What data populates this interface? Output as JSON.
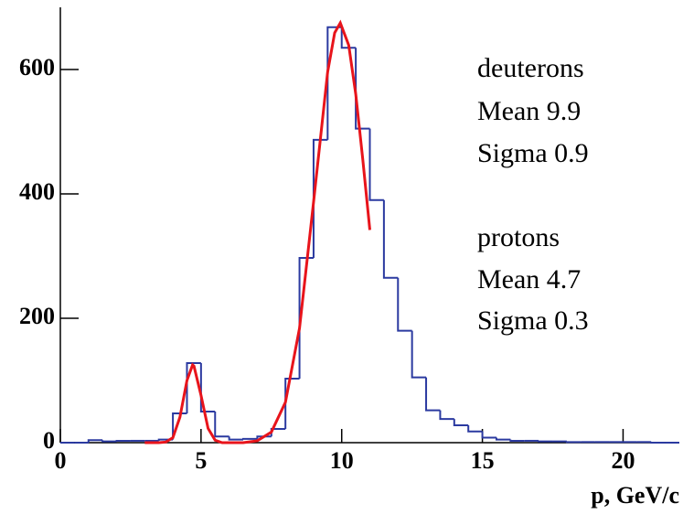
{
  "chart_data": {
    "type": "histogram",
    "x_label": "p, GeV/c",
    "bins": [
      0,
      0.5,
      1,
      1.5,
      2,
      2.5,
      3,
      3.5,
      4,
      4.5,
      5,
      5.5,
      6,
      6.5,
      7,
      7.5,
      8,
      8.5,
      9,
      9.5,
      10,
      10.5,
      11,
      11.5,
      12,
      12.5,
      13,
      13.5,
      14,
      14.5,
      15,
      15.5,
      16,
      16.5,
      17,
      17.5,
      18,
      18.5,
      19,
      19.5,
      20,
      20.5,
      21,
      21.5,
      22
    ],
    "counts": [
      0,
      0,
      4,
      2,
      3,
      3,
      3,
      5,
      47,
      128,
      50,
      10,
      5,
      6,
      10,
      22,
      103,
      297,
      487,
      668,
      635,
      505,
      390,
      265,
      180,
      105,
      52,
      38,
      28,
      18,
      8,
      5,
      3,
      3,
      2,
      2,
      1,
      1,
      1,
      1,
      1,
      1,
      0,
      0
    ],
    "color": "#2b3aa0",
    "fit": {
      "color": "#e8141b",
      "x": [
        3,
        3.5,
        3.75,
        4,
        4.25,
        4.5,
        4.7,
        4.75,
        5,
        5.25,
        5.5,
        5.75,
        6,
        6.5,
        7,
        7.5,
        8,
        8.5,
        9,
        9.5,
        9.75,
        9.95,
        10.25,
        10.5,
        10.75,
        11
      ],
      "y": [
        0,
        0,
        1,
        8,
        41,
        100,
        125,
        123,
        76,
        23,
        4,
        0,
        0,
        0,
        3,
        17,
        65,
        184,
        387,
        596,
        659,
        675,
        639,
        560,
        455,
        342
      ]
    },
    "annotations": [
      "deuterons",
      "Mean 9.9",
      "Sigma 0.9",
      "protons",
      "Mean 4.7",
      "Sigma 0.3"
    ],
    "xlim": [
      0,
      22
    ],
    "xticks": [
      0,
      5,
      10,
      15,
      20
    ],
    "ylim": [
      0,
      700
    ],
    "yticks": [
      0,
      200,
      400,
      600
    ]
  }
}
